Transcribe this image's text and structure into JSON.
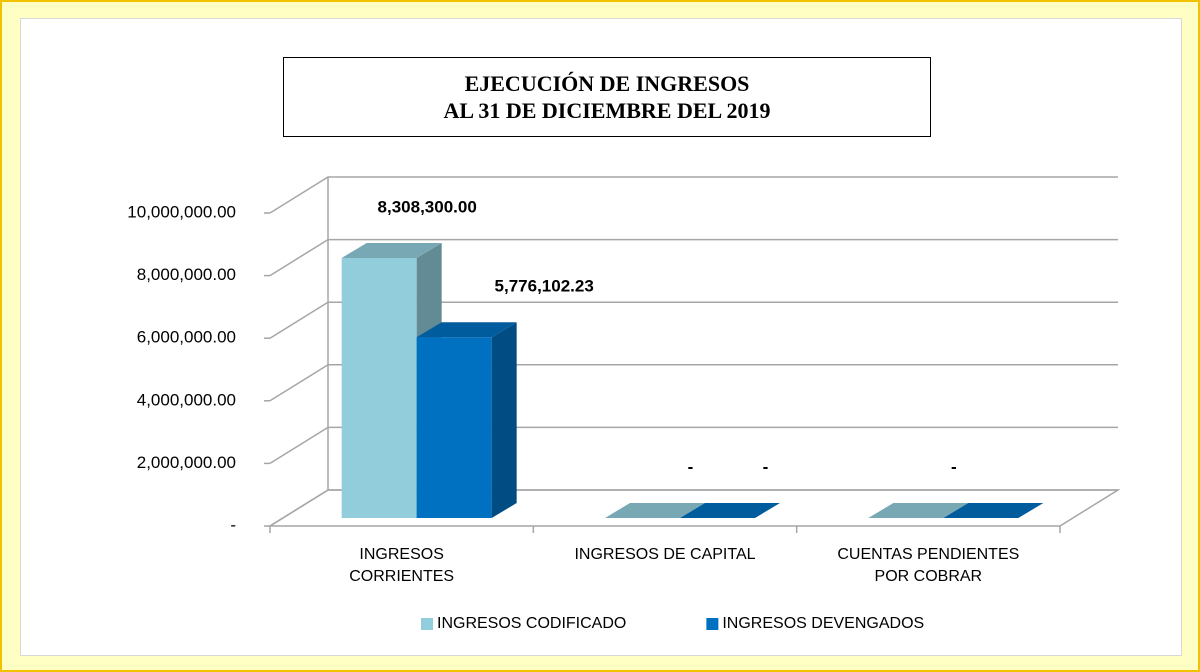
{
  "chart_data": {
    "type": "bar3d",
    "title": "EJECUCIÓN DE INGRESOS",
    "subtitle": "AL 31 DE DICIEMBRE DEL 2019",
    "categories": [
      "INGRESOS CORRIENTES",
      "INGRESOS DE CAPITAL",
      "CUENTAS PENDIENTES POR COBRAR"
    ],
    "series": [
      {
        "name": "INGRESOS CODIFICADO",
        "color": "#92cddc",
        "values": [
          8308300,
          0,
          0
        ],
        "value_labels": [
          "8,308,300.00",
          "-",
          "-"
        ]
      },
      {
        "name": "INGRESOS DEVENGADOS",
        "color": "#0070c0",
        "values": [
          5776102.23,
          0,
          0
        ],
        "value_labels": [
          "5,776,102.23",
          "-",
          null
        ]
      }
    ],
    "ylim": [
      0,
      10000000
    ],
    "yticks": [
      {
        "value": 0,
        "label": "-"
      },
      {
        "value": 2000000,
        "label": "2,000,000.00"
      },
      {
        "value": 4000000,
        "label": "4,000,000.00"
      },
      {
        "value": 6000000,
        "label": "6,000,000.00"
      },
      {
        "value": 8000000,
        "label": "8,000,000.00"
      },
      {
        "value": 10000000,
        "label": "10,000,000.00"
      }
    ],
    "grid": true,
    "legend": "bottom"
  }
}
